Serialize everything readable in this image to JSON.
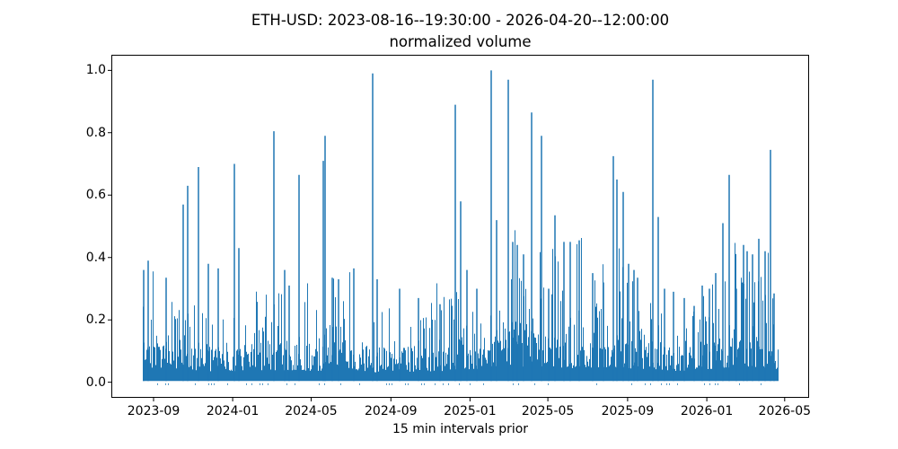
{
  "figure": {
    "title_line1": "ETH-USD: 2023-08-16--19:30:00 - 2026-04-20--12:00:00",
    "title_line2": "normalized volume",
    "xlabel": "15 min intervals prior",
    "background_color": "#ffffff",
    "frame_color": "#000000",
    "text_color": "#000000"
  },
  "chart_data": {
    "type": "line",
    "title": "ETH-USD: 2023-08-16--19:30:00 - 2026-04-20--12:00:00",
    "subtitle": "normalized volume",
    "xlabel": "15 min intervals prior",
    "ylabel": "",
    "x_start": "2023-08-16 19:30:00",
    "x_end": "2026-04-20 12:00:00",
    "x_interval": "15 min",
    "ylim": [
      -0.05,
      1.05
    ],
    "data_value_range": [
      0.0,
      1.0
    ],
    "grid": false,
    "legend": null,
    "line_color": "#1f77b4",
    "x_ticks": [
      {
        "label": "2023-09",
        "f": 0.0605
      },
      {
        "label": "2024-01",
        "f": 0.1739
      },
      {
        "label": "2024-05",
        "f": 0.2863
      },
      {
        "label": "2024-09",
        "f": 0.4006
      },
      {
        "label": "2025-01",
        "f": 0.514
      },
      {
        "label": "2025-05",
        "f": 0.6256
      },
      {
        "label": "2025-09",
        "f": 0.7399
      },
      {
        "label": "2026-01",
        "f": 0.8534
      },
      {
        "label": "2026-05",
        "f": 0.965
      }
    ],
    "y_ticks": [
      {
        "label": "0.0",
        "v": 0.0
      },
      {
        "label": "0.2",
        "v": 0.2
      },
      {
        "label": "0.4",
        "v": 0.4
      },
      {
        "label": "0.6",
        "v": 0.6
      },
      {
        "label": "0.8",
        "v": 0.8
      },
      {
        "label": "1.0",
        "v": 1.0
      }
    ],
    "data_span_frac": [
      0.0455,
      0.9555
    ],
    "peaks": [
      {
        "f": 0.103,
        "v": 0.57,
        "date": "2023-10-17"
      },
      {
        "f": 0.1094,
        "v": 0.63,
        "date": "2023-10-24"
      },
      {
        "f": 0.1248,
        "v": 0.69,
        "date": "2023-11-09"
      },
      {
        "f": 0.1763,
        "v": 0.7,
        "date": "2024-01-04"
      },
      {
        "f": 0.233,
        "v": 0.805,
        "date": "2024-03-05"
      },
      {
        "f": 0.269,
        "v": 0.665,
        "date": "2024-04-12"
      },
      {
        "f": 0.3037,
        "v": 0.71,
        "date": "2024-05-20"
      },
      {
        "f": 0.3063,
        "v": 0.79,
        "date": "2024-05-23"
      },
      {
        "f": 0.3745,
        "v": 0.99,
        "date": "2024-08-04"
      },
      {
        "f": 0.4929,
        "v": 0.89,
        "date": "2024-12-09"
      },
      {
        "f": 0.5006,
        "v": 0.58,
        "date": "2024-12-17"
      },
      {
        "f": 0.5444,
        "v": 1.0,
        "date": "2025-02-02"
      },
      {
        "f": 0.5521,
        "v": 0.52,
        "date": "2025-02-10"
      },
      {
        "f": 0.5689,
        "v": 0.97,
        "date": "2025-03-01"
      },
      {
        "f": 0.6023,
        "v": 0.865,
        "date": "2025-04-06"
      },
      {
        "f": 0.6165,
        "v": 0.79,
        "date": "2025-04-22"
      },
      {
        "f": 0.6358,
        "v": 0.535,
        "date": "2025-05-12"
      },
      {
        "f": 0.7194,
        "v": 0.725,
        "date": "2025-08-10"
      },
      {
        "f": 0.7246,
        "v": 0.65,
        "date": "2025-08-16"
      },
      {
        "f": 0.7336,
        "v": 0.61,
        "date": "2025-08-26"
      },
      {
        "f": 0.7761,
        "v": 0.97,
        "date": "2025-10-10"
      },
      {
        "f": 0.7838,
        "v": 0.53,
        "date": "2025-10-18"
      },
      {
        "f": 0.8764,
        "v": 0.51,
        "date": "2026-01-26"
      },
      {
        "f": 0.8855,
        "v": 0.665,
        "date": "2026-02-05"
      },
      {
        "f": 0.9447,
        "v": 0.745,
        "date": "2026-04-09"
      }
    ],
    "minor_peaks": [
      [
        0.0463,
        0.36
      ],
      [
        0.0528,
        0.39
      ],
      [
        0.0785,
        0.335
      ],
      [
        0.139,
        0.38
      ],
      [
        0.1531,
        0.365
      ],
      [
        0.1828,
        0.43
      ],
      [
        0.2484,
        0.36
      ],
      [
        0.2548,
        0.31
      ],
      [
        0.3166,
        0.335
      ],
      [
        0.3256,
        0.33
      ],
      [
        0.3475,
        0.365
      ],
      [
        0.381,
        0.33
      ],
      [
        0.4131,
        0.3
      ],
      [
        0.4402,
        0.27
      ],
      [
        0.471,
        0.25
      ],
      [
        0.5097,
        0.36
      ],
      [
        0.5238,
        0.3
      ],
      [
        0.5753,
        0.45
      ],
      [
        0.5817,
        0.44
      ],
      [
        0.5907,
        0.41
      ],
      [
        0.6268,
        0.3
      ],
      [
        0.6487,
        0.45
      ],
      [
        0.6577,
        0.45
      ],
      [
        0.6705,
        0.455
      ],
      [
        0.6898,
        0.35
      ],
      [
        0.7053,
        0.32
      ],
      [
        0.7413,
        0.38
      ],
      [
        0.749,
        0.36
      ],
      [
        0.7542,
        0.335
      ],
      [
        0.7928,
        0.3
      ],
      [
        0.8057,
        0.29
      ],
      [
        0.8211,
        0.27
      ],
      [
        0.8353,
        0.245
      ],
      [
        0.8468,
        0.31
      ],
      [
        0.8571,
        0.3
      ],
      [
        0.8661,
        0.35
      ],
      [
        0.8958,
        0.3
      ],
      [
        0.906,
        0.44
      ],
      [
        0.9112,
        0.42
      ],
      [
        0.9189,
        0.41
      ],
      [
        0.9279,
        0.46
      ],
      [
        0.9369,
        0.42
      ],
      [
        0.9498,
        0.285
      ]
    ],
    "noise": {
      "seed": 1337,
      "base": [
        0.03,
        0.105
      ],
      "spike_prob": 0.55,
      "spike": [
        0.1,
        0.34
      ],
      "tall_prob": 0.055,
      "tall": [
        0.26,
        0.47
      ],
      "envelope": [
        0.9,
        1.0,
        0.8,
        0.6,
        0.75,
        0.8,
        0.75,
        0.7,
        0.9,
        0.55,
        0.6,
        0.65,
        0.7,
        0.9,
        1.1,
        1.15,
        1.1,
        1.0,
        1.1,
        1.0,
        0.85,
        0.7,
        0.8,
        1.05,
        1.1,
        0.9
      ]
    }
  }
}
